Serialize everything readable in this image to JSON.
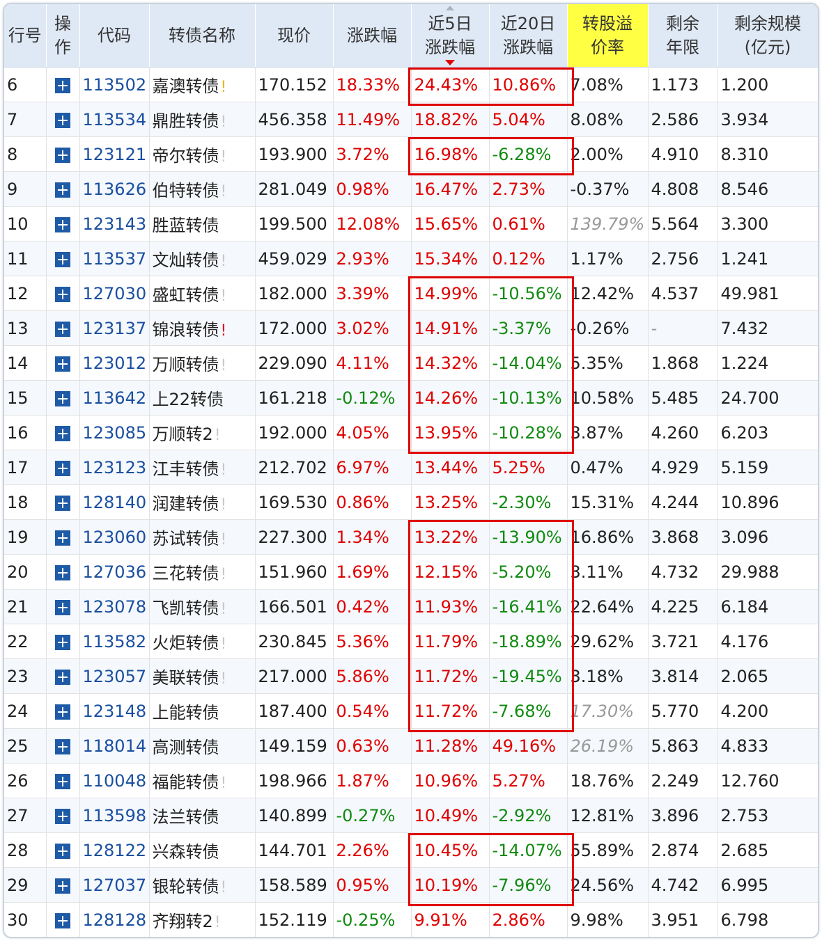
{
  "colors": {
    "up": "#e00000",
    "down": "#108a10",
    "code": "#1a4fa0",
    "header_bg": "#dfe9f5",
    "highlight_header": "#ffff44",
    "marker_yellow": "#e6b800",
    "marker_red": "#e00000",
    "marker_gray": "#c8c8c8"
  },
  "icons": {
    "row_action": "plus-square-icon",
    "sort_indicator": "sort-desc-icon",
    "row_marker": "exclamation-icon"
  },
  "header": {
    "row_no": "行号",
    "action": "操作",
    "code": "代码",
    "name": "转债名称",
    "price": "现价",
    "change": "涨跌幅",
    "change5d": "近5日涨跌幅",
    "change20d": "近20日涨跌幅",
    "premium": "转股溢价率",
    "years_left": "剩余年限",
    "size_left": "剩余规模(亿元)"
  },
  "rows": [
    {
      "no": "6",
      "code": "113502",
      "name": "嘉澳转债",
      "mark": "!",
      "mark_color": "yellow",
      "price": "170.152",
      "chg": "18.33%",
      "chg5": "24.43%",
      "chg20": "10.86%",
      "premium": "7.08%",
      "years": "1.173",
      "size": "1.200"
    },
    {
      "no": "7",
      "code": "113534",
      "name": "鼎胜转债",
      "mark": "!",
      "mark_color": "gray",
      "price": "456.358",
      "chg": "11.49%",
      "chg5": "18.82%",
      "chg20": "5.04%",
      "premium": "8.08%",
      "years": "2.586",
      "size": "3.934"
    },
    {
      "no": "8",
      "code": "123121",
      "name": "帝尔转债",
      "mark": "!",
      "mark_color": "gray",
      "price": "193.900",
      "chg": "3.72%",
      "chg5": "16.98%",
      "chg20": "-6.28%",
      "premium": "2.00%",
      "years": "4.910",
      "size": "8.310"
    },
    {
      "no": "9",
      "code": "113626",
      "name": "伯特转债",
      "mark": "!",
      "mark_color": "gray",
      "price": "281.049",
      "chg": "0.98%",
      "chg5": "16.47%",
      "chg20": "2.73%",
      "premium": "-0.37%",
      "years": "4.808",
      "size": "8.546"
    },
    {
      "no": "10",
      "code": "123143",
      "name": "胜蓝转债",
      "mark": "",
      "mark_color": "",
      "price": "199.500",
      "chg": "12.08%",
      "chg5": "15.65%",
      "chg20": "0.61%",
      "premium": "139.79%",
      "premium_italic": true,
      "years": "5.564",
      "size": "3.300"
    },
    {
      "no": "11",
      "code": "113537",
      "name": "文灿转债",
      "mark": "!",
      "mark_color": "gray",
      "price": "459.029",
      "chg": "2.93%",
      "chg5": "15.34%",
      "chg20": "0.12%",
      "premium": "1.17%",
      "years": "2.756",
      "size": "1.241"
    },
    {
      "no": "12",
      "code": "127030",
      "name": "盛虹转债",
      "mark": "!",
      "mark_color": "gray",
      "price": "182.000",
      "chg": "3.39%",
      "chg5": "14.99%",
      "chg20": "-10.56%",
      "premium": "12.42%",
      "years": "4.537",
      "size": "49.981"
    },
    {
      "no": "13",
      "code": "123137",
      "name": "锦浪转债",
      "mark": "!",
      "mark_color": "red",
      "price": "172.000",
      "chg": "3.02%",
      "chg5": "14.91%",
      "chg20": "-3.37%",
      "premium": "-0.26%",
      "years": "-",
      "size": "7.432"
    },
    {
      "no": "14",
      "code": "123012",
      "name": "万顺转债",
      "mark": "!",
      "mark_color": "gray",
      "price": "229.090",
      "chg": "4.11%",
      "chg5": "14.32%",
      "chg20": "-14.04%",
      "premium": "5.35%",
      "years": "1.868",
      "size": "1.224"
    },
    {
      "no": "15",
      "code": "113642",
      "name": "上22转债",
      "mark": "",
      "mark_color": "",
      "price": "161.218",
      "chg": "-0.12%",
      "chg5": "14.26%",
      "chg20": "-10.13%",
      "premium": "10.58%",
      "years": "5.485",
      "size": "24.700"
    },
    {
      "no": "16",
      "code": "123085",
      "name": "万顺转2",
      "mark": "!",
      "mark_color": "gray",
      "price": "192.000",
      "chg": "4.05%",
      "chg5": "13.95%",
      "chg20": "-10.28%",
      "premium": "3.87%",
      "years": "4.260",
      "size": "6.203"
    },
    {
      "no": "17",
      "code": "123123",
      "name": "江丰转债",
      "mark": "!",
      "mark_color": "gray",
      "price": "212.702",
      "chg": "6.97%",
      "chg5": "13.44%",
      "chg20": "5.25%",
      "premium": "0.47%",
      "years": "4.929",
      "size": "5.159"
    },
    {
      "no": "18",
      "code": "128140",
      "name": "润建转债",
      "mark": "!",
      "mark_color": "gray",
      "price": "169.530",
      "chg": "0.86%",
      "chg5": "13.25%",
      "chg20": "-2.30%",
      "premium": "15.31%",
      "years": "4.244",
      "size": "10.896"
    },
    {
      "no": "19",
      "code": "123060",
      "name": "苏试转债",
      "mark": "!",
      "mark_color": "gray",
      "price": "227.300",
      "chg": "1.34%",
      "chg5": "13.22%",
      "chg20": "-13.90%",
      "premium": "16.86%",
      "years": "3.868",
      "size": "3.096"
    },
    {
      "no": "20",
      "code": "127036",
      "name": "三花转债",
      "mark": "!",
      "mark_color": "gray",
      "price": "151.960",
      "chg": "1.69%",
      "chg5": "12.15%",
      "chg20": "-5.20%",
      "premium": "3.11%",
      "years": "4.732",
      "size": "29.988"
    },
    {
      "no": "21",
      "code": "123078",
      "name": "飞凯转债",
      "mark": "!",
      "mark_color": "gray",
      "price": "166.501",
      "chg": "0.42%",
      "chg5": "11.93%",
      "chg20": "-16.41%",
      "premium": "22.64%",
      "years": "4.225",
      "size": "6.184"
    },
    {
      "no": "22",
      "code": "113582",
      "name": "火炬转债",
      "mark": "!",
      "mark_color": "gray",
      "price": "230.845",
      "chg": "5.36%",
      "chg5": "11.79%",
      "chg20": "-18.89%",
      "premium": "29.62%",
      "years": "3.721",
      "size": "4.176"
    },
    {
      "no": "23",
      "code": "123057",
      "name": "美联转债",
      "mark": "!",
      "mark_color": "gray",
      "price": "217.000",
      "chg": "5.86%",
      "chg5": "11.72%",
      "chg20": "-19.45%",
      "premium": "3.18%",
      "years": "3.814",
      "size": "2.065"
    },
    {
      "no": "24",
      "code": "123148",
      "name": "上能转债",
      "mark": "",
      "mark_color": "",
      "price": "187.400",
      "chg": "0.54%",
      "chg5": "11.72%",
      "chg20": "-7.68%",
      "premium": "17.30%",
      "premium_italic": true,
      "years": "5.770",
      "size": "4.200"
    },
    {
      "no": "25",
      "code": "118014",
      "name": "高测转债",
      "mark": "",
      "mark_color": "",
      "price": "149.159",
      "chg": "0.63%",
      "chg5": "11.28%",
      "chg20": "49.16%",
      "premium": "26.19%",
      "premium_italic": true,
      "years": "5.863",
      "size": "4.833"
    },
    {
      "no": "26",
      "code": "110048",
      "name": "福能转债",
      "mark": "!",
      "mark_color": "gray",
      "price": "198.966",
      "chg": "1.87%",
      "chg5": "10.96%",
      "chg20": "5.27%",
      "premium": "18.76%",
      "years": "2.249",
      "size": "12.760"
    },
    {
      "no": "27",
      "code": "113598",
      "name": "法兰转债",
      "mark": "",
      "mark_color": "",
      "price": "140.899",
      "chg": "-0.27%",
      "chg5": "10.49%",
      "chg20": "-2.92%",
      "premium": "12.81%",
      "years": "3.896",
      "size": "2.753"
    },
    {
      "no": "28",
      "code": "128122",
      "name": "兴森转债",
      "mark": "",
      "mark_color": "",
      "price": "144.701",
      "chg": "2.26%",
      "chg5": "10.45%",
      "chg20": "-14.07%",
      "premium": "55.89%",
      "years": "2.874",
      "size": "2.685"
    },
    {
      "no": "29",
      "code": "127037",
      "name": "银轮转债",
      "mark": "!",
      "mark_color": "gray",
      "price": "158.589",
      "chg": "0.95%",
      "chg5": "10.19%",
      "chg20": "-7.96%",
      "premium": "24.56%",
      "years": "4.742",
      "size": "6.995"
    },
    {
      "no": "30",
      "code": "128128",
      "name": "齐翔转2",
      "mark": "!",
      "mark_color": "gray",
      "price": "152.119",
      "chg": "-0.25%",
      "chg5": "9.91%",
      "chg20": "2.86%",
      "premium": "9.98%",
      "years": "3.951",
      "size": "6.798"
    }
  ],
  "highlight_boxes": [
    {
      "from_row": "6",
      "to_row": "6"
    },
    {
      "from_row": "8",
      "to_row": "8"
    },
    {
      "from_row": "12",
      "to_row": "16"
    },
    {
      "from_row": "19",
      "to_row": "24"
    },
    {
      "from_row": "28",
      "to_row": "29"
    }
  ]
}
